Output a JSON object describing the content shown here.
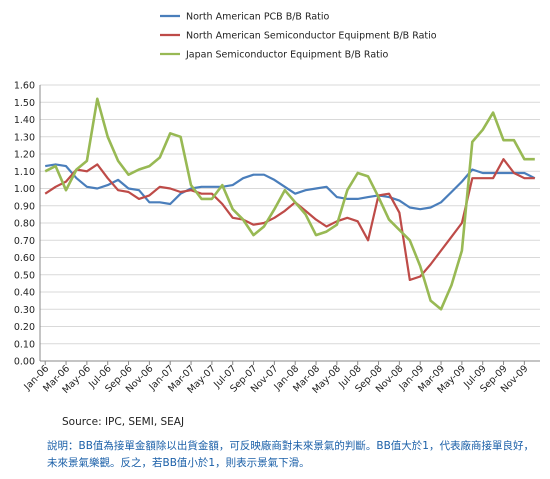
{
  "chart_data": {
    "type": "line",
    "x": [
      "Jan-06",
      "Feb-06",
      "Mar-06",
      "Apr-06",
      "May-06",
      "Jun-06",
      "Jul-06",
      "Aug-06",
      "Sep-06",
      "Oct-06",
      "Nov-06",
      "Dec-06",
      "Jan-07",
      "Feb-07",
      "Mar-07",
      "Apr-07",
      "May-07",
      "Jun-07",
      "Jul-07",
      "Aug-07",
      "Sep-07",
      "Oct-07",
      "Nov-07",
      "Dec-07",
      "Jan-08",
      "Feb-08",
      "Mar-08",
      "Apr-08",
      "May-08",
      "Jun-08",
      "Jul-08",
      "Aug-08",
      "Sep-08",
      "Oct-08",
      "Nov-08",
      "Dec-08",
      "Jan-09",
      "Feb-09",
      "Mar-09",
      "Apr-09",
      "May-09",
      "Jun-09",
      "Jul-09",
      "Aug-09",
      "Sep-09",
      "Oct-09",
      "Nov-09",
      "Dec-09"
    ],
    "tick_labels": [
      "Jan-06",
      "Mar-06",
      "May-06",
      "Jul-06",
      "Sep-06",
      "Nov-06",
      "Jan-07",
      "Mar-07",
      "May-07",
      "Jul-07",
      "Sep-07",
      "Nov-07",
      "Jan-08",
      "Mar-08",
      "May-08",
      "Jul-08",
      "Sep-08",
      "Nov-08",
      "Jan-09",
      "Mar-09",
      "May-09",
      "Jul-09",
      "Sep-09",
      "Nov-09"
    ],
    "series": [
      {
        "name": "North American PCB B/B Ratio",
        "color": "#4a7ebb",
        "values": [
          1.13,
          1.14,
          1.13,
          1.06,
          1.01,
          1.0,
          1.02,
          1.05,
          1.0,
          0.99,
          0.92,
          0.92,
          0.91,
          0.97,
          1.0,
          1.01,
          1.01,
          1.01,
          1.02,
          1.06,
          1.08,
          1.08,
          1.05,
          1.01,
          0.97,
          0.99,
          1.0,
          1.01,
          0.95,
          0.94,
          0.94,
          0.95,
          0.96,
          0.95,
          0.93,
          0.89,
          0.88,
          0.89,
          0.92,
          0.98,
          1.04,
          1.11,
          1.09,
          1.09,
          1.09,
          1.09,
          1.09,
          1.06
        ]
      },
      {
        "name": "North American Semiconductor Equipment B/B Ratio",
        "color": "#be4b48",
        "values": [
          0.97,
          1.01,
          1.04,
          1.11,
          1.1,
          1.14,
          1.06,
          0.99,
          0.98,
          0.94,
          0.96,
          1.01,
          1.0,
          0.98,
          0.99,
          0.97,
          0.97,
          0.91,
          0.83,
          0.82,
          0.79,
          0.8,
          0.83,
          0.87,
          0.92,
          0.87,
          0.82,
          0.78,
          0.81,
          0.83,
          0.81,
          0.7,
          0.96,
          0.97,
          0.86,
          0.47,
          0.49,
          0.56,
          0.64,
          0.72,
          0.8,
          1.06,
          1.06,
          1.06,
          1.17,
          1.09,
          1.06,
          1.06
        ]
      },
      {
        "name": "Japan Semiconductor Equipment B/B Ratio",
        "color": "#98b954",
        "values": [
          1.1,
          1.13,
          0.99,
          1.11,
          1.16,
          1.52,
          1.3,
          1.16,
          1.08,
          1.11,
          1.13,
          1.18,
          1.32,
          1.3,
          1.02,
          0.94,
          0.94,
          1.02,
          0.88,
          0.82,
          0.73,
          0.78,
          0.88,
          0.99,
          0.92,
          0.85,
          0.73,
          0.75,
          0.79,
          0.99,
          1.09,
          1.07,
          0.95,
          0.82,
          0.76,
          0.7,
          0.55,
          0.35,
          0.3,
          0.44,
          0.64,
          1.27,
          1.34,
          1.44,
          1.28,
          1.28,
          1.17,
          1.17
        ]
      }
    ],
    "ylim": [
      0,
      1.6
    ],
    "yticks": [
      "0.00",
      "0.10",
      "0.20",
      "0.30",
      "0.40",
      "0.50",
      "0.60",
      "0.70",
      "0.80",
      "0.90",
      "1.00",
      "1.10",
      "1.20",
      "1.30",
      "1.40",
      "1.50",
      "1.60"
    ],
    "legend_position": "top"
  },
  "source_text": "Source: IPC, SEMI, SEAJ",
  "note_text": "說明：BB值為接單金額除以出貨金額，可反映廠商對未來景氣的判斷。BB值大於1，代表廠商接單良好，未來景氣樂觀。反之，若BB值小於1，則表示景氣下滑。"
}
